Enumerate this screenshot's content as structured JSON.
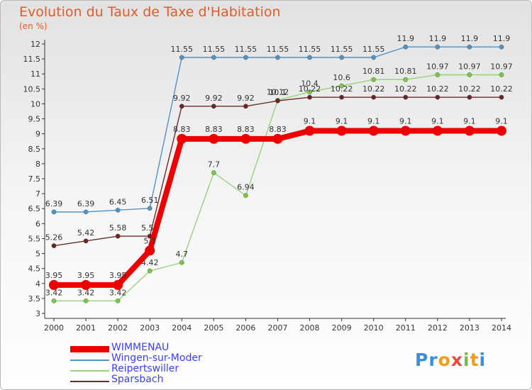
{
  "title": "Evolution du Taux de Taxe d'Habitation",
  "unit": "(en %)",
  "logo": {
    "letters": [
      "P",
      "r",
      "o",
      "x",
      "i",
      "t",
      "i"
    ],
    "colors": [
      "#3a8fd9",
      "#3a8fd9",
      "#f39c12",
      "#e74c3c",
      "#7ab648",
      "#f39c12",
      "#3a8fd9"
    ]
  },
  "chart_data": {
    "type": "line",
    "title": "Evolution du Taux de Taxe d'Habitation",
    "ylabel": "(en %)",
    "xlabel": "",
    "x": [
      "2000",
      "2001",
      "2002",
      "2003",
      "2004",
      "2005",
      "2006",
      "2007",
      "2008",
      "2009",
      "2010",
      "2011",
      "2012",
      "2013",
      "2014"
    ],
    "ylim": [
      3,
      12
    ],
    "yticks": [
      "3",
      "3.5",
      "4",
      "4.5",
      "5",
      "5.5",
      "6",
      "6.5",
      "7",
      "7.5",
      "8",
      "8.5",
      "9",
      "9.5",
      "10",
      "10.5",
      "11",
      "11.5",
      "12"
    ],
    "grid": false,
    "legend_position": "bottom-left",
    "series": [
      {
        "name": "Wingen-sur-Moder",
        "color": "#4f93c9",
        "dot": "#4f93c9",
        "values": [
          6.39,
          6.39,
          6.45,
          6.51,
          11.55,
          11.55,
          11.55,
          11.55,
          11.55,
          11.55,
          11.55,
          11.9,
          11.9,
          11.9,
          11.9
        ],
        "labels": [
          "6.39",
          "6.39",
          "6.45",
          "6.51",
          "11.55",
          "11.55",
          "11.55",
          "11.55",
          "11.55",
          "11.55",
          "11.55",
          "11.9",
          "11.9",
          "11.9",
          "11.9"
        ]
      },
      {
        "name": "Reipertswiller",
        "color": "#9ad27a",
        "dot": "#78c845",
        "values": [
          3.42,
          3.42,
          3.42,
          4.42,
          4.7,
          7.7,
          6.94,
          10.12,
          10.4,
          10.6,
          10.81,
          10.81,
          10.97,
          10.97,
          10.97
        ],
        "labels": [
          "3.42",
          "3.42",
          "3.42",
          "4.42",
          "4.7",
          "7.7",
          "6.94",
          "10.12",
          "10.4",
          "10.6",
          "10.81",
          "10.81",
          "10.97",
          "10.97",
          "10.97"
        ]
      },
      {
        "name": "Sparsbach",
        "color": "#6b2c2c",
        "dot": "#6b2424",
        "values": [
          5.26,
          5.42,
          5.58,
          5.58,
          9.92,
          9.92,
          9.92,
          10.1,
          10.22,
          10.22,
          10.22,
          10.22,
          10.22,
          10.22,
          10.22
        ],
        "labels": [
          "5.26",
          "5.42",
          "5.58",
          "5.58",
          "9.92",
          "9.92",
          "9.92",
          "10.1",
          "10.22",
          "10.22",
          "10.22",
          "10.22",
          "10.22",
          "10.22",
          "10.22"
        ]
      },
      {
        "name": "WIMMENAU",
        "color": "#ee0000",
        "dot": "#ee0000",
        "values": [
          3.95,
          3.95,
          3.95,
          5.1,
          8.83,
          8.83,
          8.83,
          8.83,
          9.1,
          9.1,
          9.1,
          9.1,
          9.1,
          9.1,
          9.1
        ],
        "labels": [
          "3.95",
          "3.95",
          "3.95",
          "5.1",
          "8.83",
          "8.83",
          "8.83",
          "8.83",
          "9.1",
          "9.1",
          "9.1",
          "9.1",
          "9.1",
          "9.1",
          "9.1"
        ]
      }
    ]
  },
  "legend": [
    {
      "label": "WIMMENAU",
      "color": "#ee0000",
      "thick": true
    },
    {
      "label": "Wingen-sur-Moder",
      "color": "#4f93c9",
      "thick": false
    },
    {
      "label": "Reipertswiller",
      "color": "#9ad27a",
      "thick": false
    },
    {
      "label": "Sparsbach",
      "color": "#6b2c2c",
      "thick": false
    }
  ]
}
